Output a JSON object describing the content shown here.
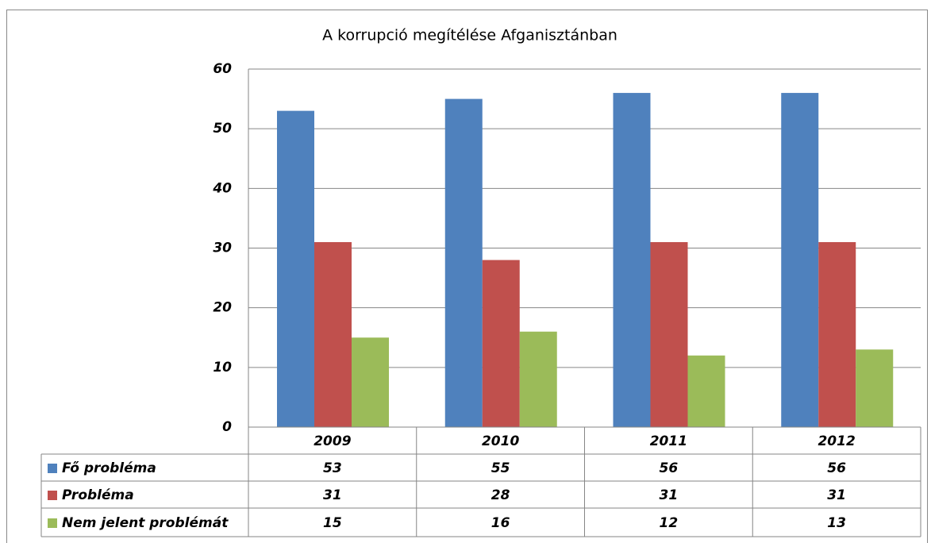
{
  "chart_data": {
    "type": "bar",
    "title": "A korrupció megítélése Afganisztánban",
    "categories": [
      "2009",
      "2010",
      "2011",
      "2012"
    ],
    "series": [
      {
        "name": "Fő probléma",
        "color": "#4f81bd",
        "values": [
          53,
          55,
          56,
          56
        ]
      },
      {
        "name": "Probléma",
        "color": "#c0504d",
        "values": [
          31,
          28,
          31,
          31
        ]
      },
      {
        "name": "Nem jelent problémát",
        "color": "#9bbb59",
        "values": [
          15,
          16,
          12,
          13
        ]
      }
    ],
    "ylim": [
      0,
      60
    ],
    "yticks": [
      0,
      10,
      20,
      30,
      40,
      50,
      60
    ],
    "grid": true,
    "data_table": true
  }
}
